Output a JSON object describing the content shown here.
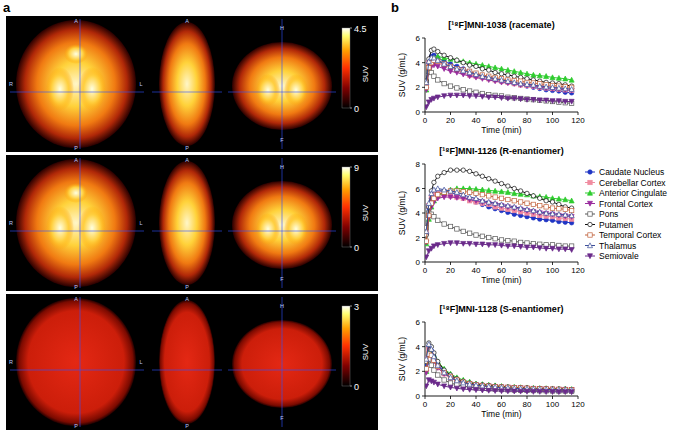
{
  "panel_a": {
    "label": "a",
    "orientation": {
      "axial": {
        "top": "A",
        "bottom": "P",
        "left": "R",
        "right": "L"
      },
      "sagittal": {
        "top": "A",
        "bottom": "P"
      },
      "coronal": {
        "top": "H",
        "bottom": "F"
      }
    },
    "rows": [
      {
        "colorbar": {
          "range": [
            0,
            4.5
          ],
          "ticks": [
            0,
            4.5
          ],
          "label": "SUV"
        }
      },
      {
        "colorbar": {
          "range": [
            0,
            9
          ],
          "ticks": [
            0,
            9
          ],
          "label": "SUV"
        }
      },
      {
        "colorbar": {
          "range": [
            0,
            3
          ],
          "ticks": [
            0,
            3
          ],
          "label": "SUV"
        }
      }
    ]
  },
  "panel_b": {
    "label": "b"
  },
  "chart_data": [
    {
      "type": "line",
      "title": "[¹⁸F]MNI-1038 (racemate)",
      "xlabel": "Time (min)",
      "ylabel": "SUV (g/mL)",
      "xlim": [
        0,
        120
      ],
      "xticks": [
        0,
        20,
        40,
        60,
        80,
        100,
        120
      ],
      "ylim": [
        0,
        6
      ],
      "yticks": [
        0,
        2,
        4,
        6
      ],
      "grid": false,
      "x": [
        1,
        3,
        5,
        7,
        10,
        15,
        20,
        25,
        30,
        35,
        40,
        45,
        50,
        55,
        60,
        65,
        70,
        75,
        80,
        85,
        90,
        95,
        100,
        105,
        110,
        115
      ],
      "series": [
        {
          "name": "Caudate Nucleus",
          "color": "#1f35c4",
          "marker": "circle",
          "values": [
            2.2,
            4.0,
            4.5,
            4.6,
            4.4,
            4.1,
            3.9,
            3.7,
            3.5,
            3.3,
            3.1,
            2.95,
            2.8,
            2.65,
            2.5,
            2.4,
            2.3,
            2.2,
            2.1,
            2.0,
            1.9,
            1.8,
            1.75,
            1.7,
            1.6,
            1.55
          ]
        },
        {
          "name": "Cerebellar Cortex",
          "color": "#f08ca0",
          "marker": "square",
          "values": [
            2.3,
            4.0,
            4.3,
            4.3,
            4.1,
            3.8,
            3.6,
            3.4,
            3.2,
            3.0,
            2.9,
            2.8,
            2.7,
            2.6,
            2.5,
            2.4,
            2.3,
            2.2,
            2.15,
            2.1,
            2.0,
            1.95,
            1.9,
            1.85,
            1.8,
            1.75
          ]
        },
        {
          "name": "Anterior Cingulate",
          "color": "#2ecc2e",
          "marker": "triangle",
          "values": [
            1.8,
            3.5,
            4.2,
            4.4,
            4.5,
            4.4,
            4.3,
            4.2,
            4.1,
            4.0,
            3.9,
            3.8,
            3.7,
            3.6,
            3.5,
            3.4,
            3.3,
            3.2,
            3.1,
            3.0,
            2.95,
            2.9,
            2.8,
            2.75,
            2.7,
            2.6
          ]
        },
        {
          "name": "Frontal Cortex",
          "color": "#9a2c9e",
          "marker": "triangle-down",
          "values": [
            1.8,
            3.3,
            3.7,
            3.8,
            3.7,
            3.5,
            3.3,
            3.2,
            3.05,
            2.9,
            2.8,
            2.7,
            2.6,
            2.5,
            2.4,
            2.35,
            2.3,
            2.2,
            2.15,
            2.1,
            2.0,
            1.95,
            1.9,
            1.85,
            1.8,
            1.75
          ]
        },
        {
          "name": "Pons",
          "color": "#555555",
          "marker": "square-open",
          "values": [
            2.5,
            3.3,
            3.2,
            2.9,
            2.6,
            2.3,
            2.1,
            1.95,
            1.8,
            1.7,
            1.6,
            1.5,
            1.4,
            1.35,
            1.3,
            1.2,
            1.15,
            1.1,
            1.05,
            1.0,
            0.95,
            0.9,
            0.85,
            0.8,
            0.75,
            0.7
          ]
        },
        {
          "name": "Putamen",
          "color": "#111111",
          "marker": "circle-open",
          "values": [
            2.5,
            4.3,
            5.0,
            5.1,
            4.9,
            4.6,
            4.4,
            4.2,
            4.0,
            3.8,
            3.7,
            3.5,
            3.4,
            3.2,
            3.1,
            3.0,
            2.9,
            2.8,
            2.7,
            2.6,
            2.5,
            2.4,
            2.35,
            2.3,
            2.2,
            2.1
          ]
        },
        {
          "name": "Temporal Cortex",
          "color": "#c0603a",
          "marker": "square-open",
          "values": [
            2.0,
            3.6,
            4.0,
            4.2,
            4.1,
            3.9,
            3.7,
            3.5,
            3.4,
            3.3,
            3.15,
            3.0,
            2.9,
            2.8,
            2.7,
            2.6,
            2.55,
            2.5,
            2.4,
            2.35,
            2.3,
            2.2,
            2.15,
            2.1,
            2.05,
            2.0
          ]
        },
        {
          "name": "Thalamus",
          "color": "#3d4f9a",
          "marker": "triangle-open",
          "values": [
            2.4,
            4.1,
            4.4,
            4.4,
            4.2,
            3.9,
            3.7,
            3.5,
            3.35,
            3.2,
            3.05,
            2.9,
            2.8,
            2.7,
            2.6,
            2.5,
            2.4,
            2.3,
            2.25,
            2.2,
            2.1,
            2.05,
            2.0,
            1.95,
            1.9,
            1.85
          ]
        },
        {
          "name": "Semiovale",
          "color": "#6a2a8a",
          "marker": "triangle-down",
          "values": [
            0.4,
            0.8,
            1.0,
            1.1,
            1.2,
            1.3,
            1.35,
            1.35,
            1.35,
            1.3,
            1.3,
            1.25,
            1.2,
            1.2,
            1.15,
            1.1,
            1.1,
            1.05,
            1.0,
            1.0,
            0.95,
            0.95,
            0.9,
            0.9,
            0.85,
            0.85
          ]
        }
      ]
    },
    {
      "type": "line",
      "title": "[¹⁸F]MNI-1126 (R-enantiomer)",
      "xlabel": "Time (min)",
      "ylabel": "SUV (g/mL)",
      "xlim": [
        0,
        120
      ],
      "xticks": [
        0,
        20,
        40,
        60,
        80,
        100,
        120
      ],
      "ylim": [
        0,
        8
      ],
      "yticks": [
        0,
        2,
        4,
        6,
        8
      ],
      "grid": false,
      "legend": "right",
      "x": [
        1,
        3,
        5,
        7,
        10,
        15,
        20,
        25,
        30,
        35,
        40,
        45,
        50,
        55,
        60,
        65,
        70,
        75,
        80,
        85,
        90,
        95,
        100,
        105,
        110,
        115
      ],
      "series": [
        {
          "name": "Caudate Nucleus",
          "color": "#1f35c4",
          "marker": "circle",
          "values": [
            2.3,
            4.4,
            5.2,
            5.6,
            5.8,
            5.8,
            5.7,
            5.5,
            5.3,
            5.1,
            4.9,
            4.7,
            4.5,
            4.35,
            4.2,
            4.05,
            3.9,
            3.8,
            3.7,
            3.6,
            3.5,
            3.45,
            3.4,
            3.3,
            3.25,
            3.2
          ]
        },
        {
          "name": "Cerebellar Cortex",
          "color": "#f08ca0",
          "marker": "square",
          "values": [
            2.5,
            4.6,
            5.3,
            5.6,
            5.6,
            5.5,
            5.4,
            5.3,
            5.2,
            5.0,
            4.9,
            4.8,
            4.7,
            4.5,
            4.4,
            4.3,
            4.2,
            4.1,
            4.0,
            3.9,
            3.8,
            3.75,
            3.7,
            3.6,
            3.55,
            3.5
          ]
        },
        {
          "name": "Anterior Cingulate",
          "color": "#2ecc2e",
          "marker": "triangle",
          "values": [
            1.5,
            3.5,
            4.5,
            5.0,
            5.4,
            5.7,
            5.9,
            6.0,
            6.0,
            6.0,
            5.95,
            5.9,
            5.85,
            5.8,
            5.75,
            5.7,
            5.6,
            5.55,
            5.5,
            5.4,
            5.35,
            5.3,
            5.2,
            5.15,
            5.1,
            5.0
          ]
        },
        {
          "name": "Frontal Cortex",
          "color": "#9a2c9e",
          "marker": "triangle-down",
          "values": [
            1.6,
            3.6,
            4.5,
            4.9,
            5.2,
            5.3,
            5.3,
            5.25,
            5.2,
            5.1,
            5.0,
            4.9,
            4.8,
            4.7,
            4.6,
            4.5,
            4.4,
            4.3,
            4.2,
            4.1,
            4.0,
            3.95,
            3.9,
            3.8,
            3.75,
            3.7
          ]
        },
        {
          "name": "Pons",
          "color": "#555555",
          "marker": "square-open",
          "values": [
            2.8,
            4.0,
            3.9,
            3.7,
            3.4,
            3.1,
            2.9,
            2.7,
            2.5,
            2.35,
            2.2,
            2.1,
            2.0,
            1.9,
            1.8,
            1.75,
            1.7,
            1.6,
            1.55,
            1.5,
            1.45,
            1.4,
            1.4,
            1.35,
            1.3,
            1.3
          ]
        },
        {
          "name": "Putamen",
          "color": "#111111",
          "marker": "circle-open",
          "values": [
            2.2,
            4.5,
            5.8,
            6.5,
            7.0,
            7.3,
            7.5,
            7.5,
            7.5,
            7.4,
            7.2,
            7.0,
            6.8,
            6.6,
            6.4,
            6.2,
            6.0,
            5.8,
            5.6,
            5.4,
            5.2,
            5.0,
            4.9,
            4.7,
            4.5,
            4.4
          ]
        },
        {
          "name": "Temporal Cortex",
          "color": "#c0603a",
          "marker": "square-open",
          "values": [
            1.7,
            3.8,
            4.8,
            5.2,
            5.5,
            5.7,
            5.8,
            5.8,
            5.75,
            5.7,
            5.6,
            5.5,
            5.4,
            5.3,
            5.2,
            5.1,
            5.0,
            4.9,
            4.8,
            4.7,
            4.6,
            4.5,
            4.4,
            4.35,
            4.3,
            4.2
          ]
        },
        {
          "name": "Thalamus",
          "color": "#3d4f9a",
          "marker": "triangle-open",
          "values": [
            2.5,
            4.8,
            5.6,
            5.9,
            6.0,
            5.9,
            5.8,
            5.7,
            5.5,
            5.3,
            5.2,
            5.0,
            4.9,
            4.8,
            4.7,
            4.6,
            4.5,
            4.4,
            4.3,
            4.2,
            4.1,
            4.0,
            3.95,
            3.9,
            3.85,
            3.8
          ]
        },
        {
          "name": "Semiovale",
          "color": "#6a2a8a",
          "marker": "triangle-down",
          "values": [
            0.4,
            0.9,
            1.1,
            1.3,
            1.4,
            1.5,
            1.55,
            1.55,
            1.5,
            1.5,
            1.45,
            1.45,
            1.4,
            1.4,
            1.35,
            1.3,
            1.3,
            1.25,
            1.2,
            1.2,
            1.15,
            1.1,
            1.1,
            1.05,
            1.05,
            1.0
          ]
        }
      ]
    },
    {
      "type": "line",
      "title": "[¹⁸F]MNI-1128 (S-enantiomer)",
      "xlabel": "Time (min)",
      "ylabel": "SUV (g/mL)",
      "xlim": [
        0,
        120
      ],
      "xticks": [
        0,
        20,
        40,
        60,
        80,
        100,
        120
      ],
      "ylim": [
        0,
        6
      ],
      "yticks": [
        0,
        2,
        4,
        6
      ],
      "grid": false,
      "x": [
        1,
        3,
        5,
        7,
        10,
        15,
        20,
        25,
        30,
        35,
        40,
        45,
        50,
        55,
        60,
        65,
        70,
        75,
        80,
        85,
        90,
        95,
        100,
        105,
        110,
        115
      ],
      "series": [
        {
          "name": "Caudate Nucleus",
          "color": "#1f35c4",
          "marker": "circle",
          "values": [
            2.6,
            4.0,
            3.7,
            3.2,
            2.6,
            2.0,
            1.6,
            1.35,
            1.15,
            1.0,
            0.9,
            0.85,
            0.8,
            0.75,
            0.7,
            0.68,
            0.65,
            0.62,
            0.6,
            0.58,
            0.56,
            0.55,
            0.53,
            0.52,
            0.5,
            0.5
          ]
        },
        {
          "name": "Cerebellar Cortex",
          "color": "#f08ca0",
          "marker": "square",
          "values": [
            3.0,
            3.8,
            3.4,
            2.9,
            2.3,
            1.8,
            1.45,
            1.2,
            1.05,
            0.95,
            0.85,
            0.8,
            0.75,
            0.7,
            0.68,
            0.65,
            0.62,
            0.6,
            0.58,
            0.56,
            0.55,
            0.53,
            0.52,
            0.5,
            0.5,
            0.48
          ]
        },
        {
          "name": "Anterior Cingulate",
          "color": "#2ecc2e",
          "marker": "triangle",
          "values": [
            2.0,
            3.5,
            3.6,
            3.3,
            2.8,
            2.2,
            1.8,
            1.5,
            1.3,
            1.15,
            1.0,
            0.95,
            0.9,
            0.85,
            0.8,
            0.75,
            0.72,
            0.7,
            0.68,
            0.65,
            0.63,
            0.62,
            0.6,
            0.58,
            0.57,
            0.55
          ]
        },
        {
          "name": "Frontal Cortex",
          "color": "#9a2c9e",
          "marker": "triangle-down",
          "values": [
            1.9,
            3.1,
            3.1,
            2.8,
            2.3,
            1.8,
            1.5,
            1.25,
            1.1,
            0.98,
            0.9,
            0.84,
            0.8,
            0.75,
            0.72,
            0.7,
            0.67,
            0.65,
            0.62,
            0.6,
            0.58,
            0.56,
            0.55,
            0.53,
            0.52,
            0.5
          ]
        },
        {
          "name": "Pons",
          "color": "#555555",
          "marker": "square-open",
          "values": [
            2.8,
            3.0,
            2.5,
            2.1,
            1.7,
            1.3,
            1.05,
            0.9,
            0.8,
            0.72,
            0.66,
            0.62,
            0.58,
            0.55,
            0.52,
            0.5,
            0.48,
            0.46,
            0.45,
            0.44,
            0.43,
            0.42,
            0.41,
            0.4,
            0.4,
            0.39
          ]
        },
        {
          "name": "Putamen",
          "color": "#111111",
          "marker": "circle-open",
          "values": [
            2.8,
            4.3,
            4.0,
            3.5,
            2.8,
            2.1,
            1.7,
            1.4,
            1.2,
            1.05,
            0.95,
            0.9,
            0.85,
            0.8,
            0.75,
            0.7,
            0.7,
            0.65,
            0.65,
            0.6,
            0.6,
            0.6,
            0.55,
            0.55,
            0.55,
            0.5
          ]
        },
        {
          "name": "Temporal Cortex",
          "color": "#c0603a",
          "marker": "square-open",
          "values": [
            2.2,
            3.4,
            3.3,
            2.9,
            2.4,
            1.9,
            1.55,
            1.3,
            1.12,
            1.0,
            0.9,
            0.85,
            0.8,
            0.75,
            0.72,
            0.7,
            0.67,
            0.65,
            0.63,
            0.6,
            0.58,
            0.57,
            0.55,
            0.54,
            0.52,
            0.5
          ]
        },
        {
          "name": "Thalamus",
          "color": "#3d4f9a",
          "marker": "triangle-open",
          "values": [
            3.0,
            4.2,
            3.8,
            3.2,
            2.5,
            1.9,
            1.5,
            1.25,
            1.08,
            0.97,
            0.88,
            0.82,
            0.77,
            0.72,
            0.68,
            0.65,
            0.62,
            0.6,
            0.58,
            0.56,
            0.55,
            0.53,
            0.52,
            0.5,
            0.5,
            0.48
          ]
        },
        {
          "name": "Semiovale",
          "color": "#6a2a8a",
          "marker": "triangle-down",
          "values": [
            0.8,
            1.3,
            1.2,
            1.1,
            0.95,
            0.8,
            0.7,
            0.62,
            0.56,
            0.52,
            0.49,
            0.46,
            0.44,
            0.42,
            0.4,
            0.39,
            0.38,
            0.37,
            0.36,
            0.35,
            0.35,
            0.34,
            0.34,
            0.33,
            0.33,
            0.32
          ]
        }
      ]
    }
  ]
}
